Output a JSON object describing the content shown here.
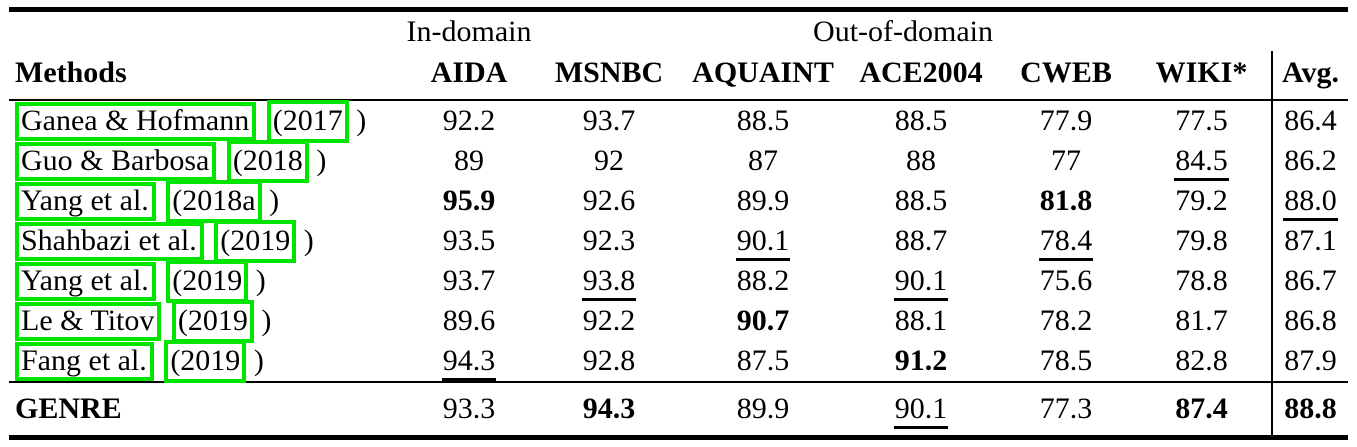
{
  "page": {
    "background": "#ffffff",
    "text_color": "#000000"
  },
  "annotation": {
    "box_color": "#00e400"
  },
  "table": {
    "group_headers": {
      "methods": "Methods",
      "in_domain": "In-domain",
      "out_of_domain": "Out-of-domain"
    },
    "columns": [
      "AIDA",
      "MSNBC",
      "AQUAINT",
      "ACE2004",
      "CWEB",
      "WIKI*",
      "Avg."
    ],
    "rows": [
      {
        "name": "Ganea & Hofmann",
        "year": "(2017",
        "close": ")",
        "values": [
          {
            "text": "92.2",
            "style": "plain"
          },
          {
            "text": "93.7",
            "style": "plain"
          },
          {
            "text": "88.5",
            "style": "plain"
          },
          {
            "text": "88.5",
            "style": "plain"
          },
          {
            "text": "77.9",
            "style": "plain"
          },
          {
            "text": "77.5",
            "style": "plain"
          },
          {
            "text": "86.4",
            "style": "plain"
          }
        ]
      },
      {
        "name": "Guo & Barbosa",
        "year": "(2018",
        "close": ")",
        "values": [
          {
            "text": "89",
            "style": "plain"
          },
          {
            "text": "92",
            "style": "plain"
          },
          {
            "text": "87",
            "style": "plain"
          },
          {
            "text": "88",
            "style": "plain"
          },
          {
            "text": "77",
            "style": "plain"
          },
          {
            "text": "84.5",
            "style": "underline"
          },
          {
            "text": "86.2",
            "style": "plain"
          }
        ]
      },
      {
        "name": "Yang et al.",
        "year": "(2018a",
        "close": ")",
        "values": [
          {
            "text": "95.9",
            "style": "bold"
          },
          {
            "text": "92.6",
            "style": "plain"
          },
          {
            "text": "89.9",
            "style": "plain"
          },
          {
            "text": "88.5",
            "style": "plain"
          },
          {
            "text": "81.8",
            "style": "bold"
          },
          {
            "text": "79.2",
            "style": "plain"
          },
          {
            "text": "88.0",
            "style": "underline"
          }
        ]
      },
      {
        "name": "Shahbazi et al.",
        "year": "(2019",
        "close": ")",
        "values": [
          {
            "text": "93.5",
            "style": "plain"
          },
          {
            "text": "92.3",
            "style": "plain"
          },
          {
            "text": "90.1",
            "style": "underline"
          },
          {
            "text": "88.7",
            "style": "plain"
          },
          {
            "text": "78.4",
            "style": "underline"
          },
          {
            "text": "79.8",
            "style": "plain"
          },
          {
            "text": "87.1",
            "style": "plain"
          }
        ]
      },
      {
        "name": "Yang et al.",
        "year": "(2019",
        "close": ")",
        "values": [
          {
            "text": "93.7",
            "style": "plain"
          },
          {
            "text": "93.8",
            "style": "underline"
          },
          {
            "text": "88.2",
            "style": "plain"
          },
          {
            "text": "90.1",
            "style": "underline"
          },
          {
            "text": "75.6",
            "style": "plain"
          },
          {
            "text": "78.8",
            "style": "plain"
          },
          {
            "text": "86.7",
            "style": "plain"
          }
        ]
      },
      {
        "name": "Le & Titov",
        "year": "(2019",
        "close": ")",
        "values": [
          {
            "text": "89.6",
            "style": "plain"
          },
          {
            "text": "92.2",
            "style": "plain"
          },
          {
            "text": "90.7",
            "style": "bold"
          },
          {
            "text": "88.1",
            "style": "plain"
          },
          {
            "text": "78.2",
            "style": "plain"
          },
          {
            "text": "81.7",
            "style": "plain"
          },
          {
            "text": "86.8",
            "style": "plain"
          }
        ]
      },
      {
        "name": "Fang et al.",
        "year": "(2019",
        "close": ")",
        "values": [
          {
            "text": "94.3",
            "style": "underline"
          },
          {
            "text": "92.8",
            "style": "plain"
          },
          {
            "text": "87.5",
            "style": "plain"
          },
          {
            "text": "91.2",
            "style": "bold"
          },
          {
            "text": "78.5",
            "style": "plain"
          },
          {
            "text": "82.8",
            "style": "plain"
          },
          {
            "text": "87.9",
            "style": "plain"
          }
        ]
      }
    ],
    "footer_row": {
      "label": "GENRE",
      "values": [
        {
          "text": "93.3",
          "style": "plain"
        },
        {
          "text": "94.3",
          "style": "bold"
        },
        {
          "text": "89.9",
          "style": "plain"
        },
        {
          "text": "90.1",
          "style": "underline"
        },
        {
          "text": "77.3",
          "style": "plain"
        },
        {
          "text": "87.4",
          "style": "bold"
        },
        {
          "text": "88.8",
          "style": "bold"
        }
      ]
    }
  }
}
